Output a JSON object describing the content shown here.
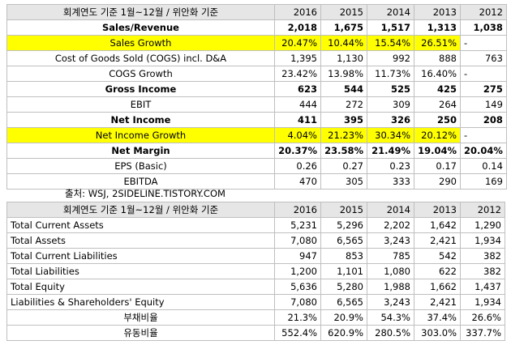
{
  "table1": {
    "header": [
      "회계연도 기준 1월~12월 / 위안화 기준",
      "2016",
      "2015",
      "2014",
      "2013",
      "2012"
    ],
    "rows": [
      {
        "label": "Sales/Revenue",
        "values": [
          "2,018",
          "1,675",
          "1,517",
          "1,313",
          "1,038"
        ]
      },
      {
        "label": "Sales Growth",
        "values": [
          "20.47%",
          "10.44%",
          "15.54%",
          "26.51%",
          "-"
        ]
      },
      {
        "label": "Cost of Goods Sold (COGS) incl. D&A",
        "values": [
          "1,395",
          "1,130",
          "992",
          "888",
          "763"
        ]
      },
      {
        "label": "COGS Growth",
        "values": [
          "23.42%",
          "13.98%",
          "11.73%",
          "16.40%",
          "-"
        ]
      },
      {
        "label": "Gross Income",
        "values": [
          "623",
          "544",
          "525",
          "425",
          "275"
        ]
      },
      {
        "label": "EBIT",
        "values": [
          "444",
          "272",
          "309",
          "264",
          "149"
        ]
      },
      {
        "label": "Net Income",
        "values": [
          "411",
          "395",
          "326",
          "250",
          "208"
        ]
      },
      {
        "label": "Net Income Growth",
        "values": [
          "4.04%",
          "21.23%",
          "30.34%",
          "20.12%",
          "-"
        ]
      },
      {
        "label": "Net Margin",
        "values": [
          "20.37%",
          "23.58%",
          "21.49%",
          "19.04%",
          "20.04%"
        ]
      },
      {
        "label": "EPS (Basic)",
        "values": [
          "0.26",
          "0.27",
          "0.23",
          "0.17",
          "0.14"
        ]
      },
      {
        "label": "EBITDA",
        "values": [
          "470",
          "305",
          "333",
          "290",
          "169"
        ]
      }
    ]
  },
  "source": "출처: WSJ, 2SIDELINE.TISTORY.COM",
  "table2": {
    "header": [
      "회계연도 기준 1월~12월 / 위안화 기준",
      "2016",
      "2015",
      "2014",
      "2013",
      "2012"
    ],
    "rows": [
      {
        "label": "Total Current Assets",
        "values": [
          "5,231",
          "5,296",
          "2,202",
          "1,642",
          "1,290"
        ]
      },
      {
        "label": "Total Assets",
        "values": [
          "7,080",
          "6,565",
          "3,243",
          "2,421",
          "1,934"
        ]
      },
      {
        "label": "Total Current Liabilities",
        "values": [
          "947",
          "853",
          "785",
          "542",
          "382"
        ]
      },
      {
        "label": "Total Liabilities",
        "values": [
          "1,200",
          "1,101",
          "1,080",
          "622",
          "382"
        ]
      },
      {
        "label": "Total Equity",
        "values": [
          "5,636",
          "5,280",
          "1,988",
          "1,662",
          "1,437"
        ]
      },
      {
        "label": "Liabilities & Shareholders' Equity",
        "values": [
          "7,080",
          "6,565",
          "3,243",
          "2,421",
          "1,934"
        ]
      },
      {
        "label": "부채비율",
        "values": [
          "21.3%",
          "20.9%",
          "54.3%",
          "37.4%",
          "26.6%"
        ]
      },
      {
        "label": "유동비율",
        "values": [
          "552.4%",
          "620.9%",
          "280.5%",
          "303.0%",
          "337.7%"
        ]
      }
    ]
  },
  "colors": {
    "highlight": "#ffff00",
    "header_bg": "#e6e6e6",
    "grid": "#bfbfbf"
  }
}
